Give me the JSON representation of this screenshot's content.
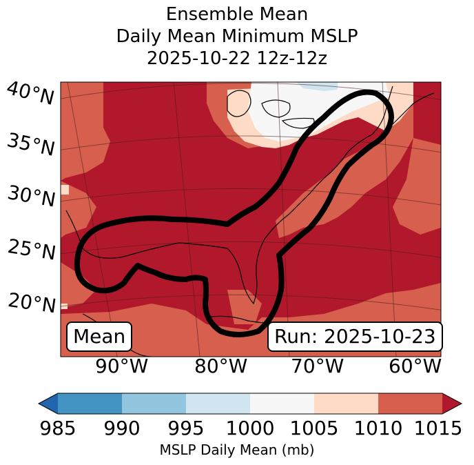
{
  "title": {
    "line1": "Ensemble Mean",
    "line2": "Daily Mean Minimum MSLP",
    "line3": "2025-10-22 12z-12z"
  },
  "map": {
    "lat_labels": [
      "40°N",
      "35°N",
      "30°N",
      "25°N",
      "20°N"
    ],
    "lon_labels": [
      "90°W",
      "80°W",
      "70°W",
      "60°W"
    ],
    "mean_badge": "Mean",
    "run_badge": "Run: 2025-10-23",
    "contour_color": "#000000"
  },
  "colorbar": {
    "label": "MSLP Daily Mean (mb)",
    "ticks": [
      "985",
      "990",
      "995",
      "1000",
      "1005",
      "1010",
      "1015"
    ],
    "bins": [
      {
        "range": "985-990",
        "color": "#4393c3"
      },
      {
        "range": "990-995",
        "color": "#92c5de"
      },
      {
        "range": "995-1000",
        "color": "#d1e5f0"
      },
      {
        "range": "1000-1005",
        "color": "#f7f7f7"
      },
      {
        "range": "1005-1010",
        "color": "#fddbc7"
      },
      {
        "range": "1010-1015",
        "color": "#d6604d"
      }
    ],
    "under_color": "#2166ac",
    "over_color": "#b2182b"
  },
  "colors": {
    "high_pressure": "#b2182b",
    "mid_pressure": "#d6604d",
    "low_pressure_light": "#fddbc7",
    "near_1000": "#f7f7f7",
    "light_blue": "#d1e5f0"
  }
}
